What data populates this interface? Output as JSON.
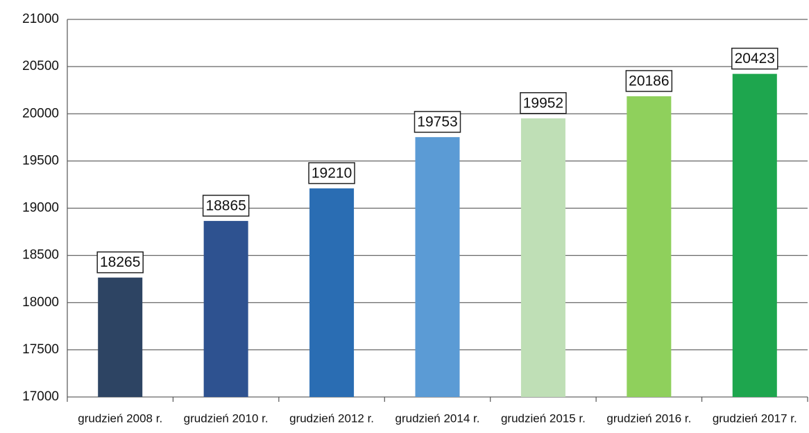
{
  "chart_data": {
    "type": "bar",
    "categories": [
      "grudzień 2008 r.",
      "grudzień 2010 r.",
      "grudzień 2012 r.",
      "grudzień 2014 r.",
      "grudzień 2015 r.",
      "grudzień 2016 r.",
      "grudzień 2017 r."
    ],
    "values": [
      18265,
      18865,
      19210,
      19753,
      19952,
      20186,
      20423
    ],
    "colors": [
      "#2d4463",
      "#2e5290",
      "#2a6db3",
      "#5b9bd5",
      "#bfdfb6",
      "#8fd05c",
      "#1ea64e"
    ],
    "ylim": [
      17000,
      21000
    ],
    "yticks": [
      17000,
      17500,
      18000,
      18500,
      19000,
      19500,
      20000,
      20500,
      21000
    ],
    "grid": true
  }
}
